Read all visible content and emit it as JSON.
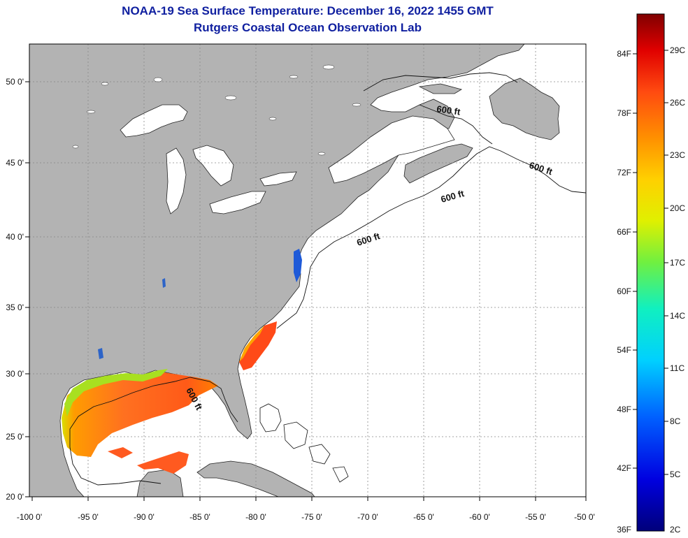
{
  "header": {
    "title": "NOAA-19 Sea Surface Temperature:  December 16, 2022 1455 GMT",
    "subtitle": "Rutgers Coastal Ocean Observation Lab"
  },
  "map": {
    "lon_ticks": [
      "-100 0'",
      "-95 0'",
      "-90 0'",
      "-85 0'",
      "-80 0'",
      "-75 0'",
      "-70 0'",
      "-65 0'",
      "-60 0'",
      "-55 0'",
      "-50 0'"
    ],
    "lat_ticks": [
      "50 0'",
      "45 0'",
      "40 0'",
      "35 0'",
      "30 0'",
      "25 0'",
      "20 0'"
    ],
    "contour_labels": [
      "600 ft",
      "600 ft",
      "600 ft",
      "600 ft",
      "600 ft"
    ],
    "colors": {
      "land": "#b3b3b3",
      "ocean": "#ffffff",
      "grid": "#888888"
    }
  },
  "colorbar": {
    "fahrenheit": [
      "84F",
      "78F",
      "72F",
      "66F",
      "60F",
      "54F",
      "48F",
      "42F",
      "36F"
    ],
    "celsius": [
      "29C",
      "26C",
      "23C",
      "20C",
      "17C",
      "14C",
      "11C",
      "8C",
      "5C",
      "2C"
    ]
  }
}
